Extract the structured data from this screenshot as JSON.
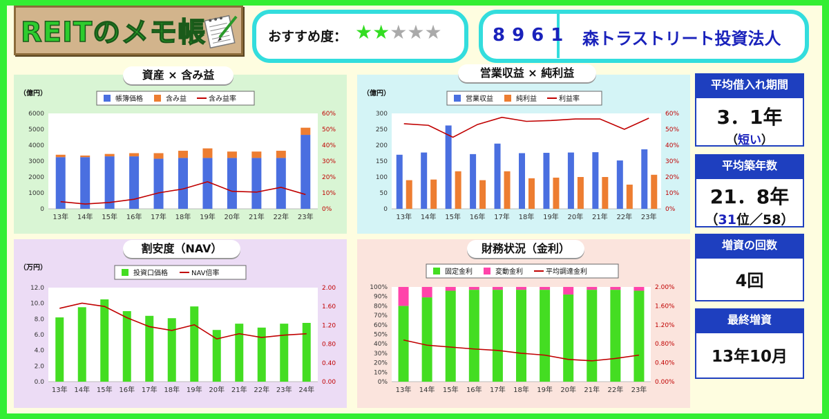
{
  "header": {
    "logo_text": "REITのメモ帳",
    "recommend_label": "おすすめ度：",
    "stars_filled": 2,
    "stars_total": 5,
    "code": "8961",
    "company": "森トラストリート投資法人"
  },
  "sidebar": [
    {
      "title": "平均借入れ期間",
      "value": "3．1年",
      "sub": "（短い）",
      "sub_blue": "短い"
    },
    {
      "title": "平均築年数",
      "value": "21．8年",
      "sub": "（31位／58）",
      "sub_blue": "31"
    },
    {
      "title": "増資の回数",
      "value": "4回",
      "sub": ""
    },
    {
      "title": "最終増資",
      "value": "13年10月",
      "sub": ""
    }
  ],
  "panel_titles": {
    "assets": "資産 × 含み益",
    "revenue": "営業収益 × 純利益",
    "nav": "割安度（NAV）",
    "finance": "財務状況（金利）"
  },
  "colors": {
    "frame": "#33ee33",
    "blue": "#4a6fe0",
    "orange": "#ed7d31",
    "red": "#c00000",
    "green": "#44dd22",
    "pink": "#ff44aa",
    "ink_blue": "#1a22bb"
  },
  "chart_data": [
    {
      "type": "bar",
      "id": "assets",
      "stacked": true,
      "unit_label": "（億円）",
      "categories": [
        "13年",
        "14年",
        "15年",
        "16年",
        "17年",
        "18年",
        "19年",
        "20年",
        "21年",
        "22年",
        "23年"
      ],
      "series": [
        {
          "name": "帳簿価格",
          "axis": "left",
          "values": [
            3250,
            3250,
            3300,
            3300,
            3150,
            3200,
            3200,
            3200,
            3200,
            3200,
            4650
          ]
        },
        {
          "name": "含み益",
          "axis": "left",
          "values": [
            150,
            100,
            150,
            200,
            350,
            450,
            600,
            400,
            400,
            450,
            450
          ]
        },
        {
          "name": "含み益率",
          "axis": "right",
          "kind": "line",
          "values": [
            4.5,
            3,
            4,
            6,
            10,
            12.5,
            17,
            11,
            10.5,
            13.5,
            9
          ]
        }
      ],
      "left_axis": {
        "min": 0,
        "max": 6000,
        "ticks": [
          "0",
          "1000",
          "2000",
          "3000",
          "4000",
          "5000",
          "6000"
        ]
      },
      "right_axis": {
        "min": 0,
        "max": 60,
        "ticks": [
          "0%",
          "10%",
          "20%",
          "30%",
          "40%",
          "50%",
          "60%"
        ]
      }
    },
    {
      "type": "bar",
      "id": "revenue",
      "stacked": false,
      "unit_label": "（億円）",
      "categories": [
        "13年",
        "14年",
        "15年",
        "16年",
        "17年",
        "18年",
        "19年",
        "20年",
        "21年",
        "22年",
        "23年"
      ],
      "series": [
        {
          "name": "営業収益",
          "axis": "left",
          "values": [
            170,
            177,
            262,
            172,
            205,
            175,
            176,
            177,
            178,
            152,
            187
          ]
        },
        {
          "name": "純利益",
          "axis": "left",
          "values": [
            90,
            92,
            118,
            90,
            118,
            96,
            98,
            100,
            100,
            76,
            107
          ]
        },
        {
          "name": "利益率",
          "axis": "right",
          "kind": "line",
          "values": [
            53.5,
            52.5,
            45,
            53,
            57.5,
            55,
            55.5,
            56.5,
            56.5,
            50,
            57
          ]
        }
      ],
      "left_axis": {
        "min": 0,
        "max": 300,
        "ticks": [
          "0",
          "50",
          "100",
          "150",
          "200",
          "250",
          "300"
        ]
      },
      "right_axis": {
        "min": 0,
        "max": 60,
        "ticks": [
          "0%",
          "10%",
          "20%",
          "30%",
          "40%",
          "50%",
          "60%"
        ]
      }
    },
    {
      "type": "bar",
      "id": "nav",
      "stacked": false,
      "unit_label": "（万円）",
      "categories": [
        "13年",
        "14年",
        "15年",
        "16年",
        "17年",
        "18年",
        "19年",
        "20年",
        "21年",
        "22年",
        "23年",
        "24年"
      ],
      "series": [
        {
          "name": "投資口価格",
          "axis": "left",
          "values": [
            8.2,
            9.5,
            10.5,
            9.0,
            8.4,
            8.1,
            9.6,
            6.6,
            7.4,
            6.9,
            7.4,
            7.5
          ]
        },
        {
          "name": "NAV倍率",
          "axis": "right",
          "kind": "line",
          "values": [
            1.56,
            1.67,
            1.6,
            1.36,
            1.17,
            1.09,
            1.21,
            0.91,
            1.02,
            0.94,
            0.99,
            1.02
          ]
        }
      ],
      "left_axis": {
        "min": 0,
        "max": 12,
        "ticks": [
          "0.0",
          "2.0",
          "4.0",
          "6.0",
          "8.0",
          "10.0",
          "12.0"
        ]
      },
      "right_axis": {
        "min": 0,
        "max": 2,
        "ticks": [
          "0.00",
          "0.40",
          "0.80",
          "1.20",
          "1.60",
          "2.00"
        ]
      }
    },
    {
      "type": "bar",
      "id": "finance",
      "stacked": true,
      "percent_stacked": true,
      "unit_label": "",
      "categories": [
        "13年",
        "14年",
        "15年",
        "16年",
        "17年",
        "18年",
        "19年",
        "20年",
        "21年",
        "22年",
        "23年"
      ],
      "series": [
        {
          "name": "固定金利",
          "axis": "left",
          "values": [
            80,
            89,
            96,
            97,
            97,
            97,
            97,
            92,
            97,
            97,
            96
          ]
        },
        {
          "name": "変動金利",
          "axis": "left",
          "values": [
            20,
            11,
            4,
            3,
            3,
            3,
            3,
            8,
            3,
            3,
            4
          ]
        },
        {
          "name": "平均調達金利",
          "axis": "right",
          "kind": "line",
          "values": [
            0.88,
            0.77,
            0.73,
            0.69,
            0.66,
            0.6,
            0.56,
            0.47,
            0.44,
            0.49,
            0.56
          ]
        }
      ],
      "left_axis": {
        "min": 0,
        "max": 100,
        "ticks": [
          "0%",
          "10%",
          "20%",
          "30%",
          "40%",
          "50%",
          "60%",
          "70%",
          "80%",
          "90%",
          "100%"
        ]
      },
      "right_axis": {
        "min": 0,
        "max": 2,
        "ticks": [
          "0.00%",
          "0.40%",
          "0.80%",
          "1.20%",
          "1.60%",
          "2.00%"
        ]
      }
    }
  ]
}
